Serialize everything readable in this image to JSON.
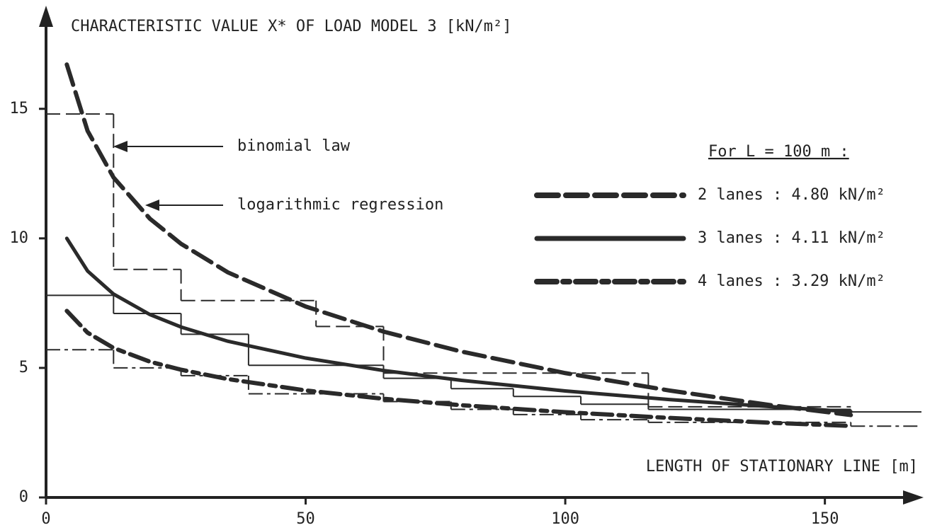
{
  "chart_data": {
    "type": "line",
    "title": "CHARACTERISTIC VALUE  X*  OF LOAD MODEL 3  [kN/m²]",
    "x_label": "LENGTH OF STATIONARY LINE  [m]",
    "xlim": [
      0,
      168.6
    ],
    "ylim": [
      0,
      18.9
    ],
    "xticks": [
      0,
      50,
      100,
      150
    ],
    "yticks": [
      0,
      5,
      10,
      15
    ],
    "legend_title": "For L = 100 m :",
    "annotations": [
      "binomial law",
      "logarithmic regression"
    ],
    "series": [
      {
        "name": "2 lanes : 4.80 kN/m²",
        "color": "#2a2a2a",
        "style": "dashed",
        "x": [
          4,
          8,
          13,
          20,
          26,
          35,
          50,
          65,
          80,
          100,
          120,
          140,
          155
        ],
        "values": [
          16.71,
          14.15,
          12.35,
          10.76,
          9.79,
          8.69,
          7.37,
          6.4,
          5.63,
          4.8,
          4.13,
          3.55,
          3.18
        ]
      },
      {
        "name": "3 lanes : 4.11 kN/m²",
        "color": "#2a2a2a",
        "style": "solid",
        "x": [
          4,
          8,
          13,
          20,
          26,
          35,
          50,
          65,
          80,
          100,
          120,
          140,
          155
        ],
        "values": [
          10.0,
          8.74,
          7.85,
          7.06,
          6.58,
          6.03,
          5.38,
          4.9,
          4.52,
          4.11,
          3.78,
          3.5,
          3.31
        ]
      },
      {
        "name": "4 lanes : 3.29 kN/m²",
        "color": "#2a2a2a",
        "style": "dashdot",
        "x": [
          4,
          8,
          13,
          20,
          26,
          35,
          50,
          65,
          80,
          100,
          120,
          140,
          155
        ],
        "values": [
          7.2,
          6.36,
          5.77,
          5.24,
          4.93,
          4.57,
          4.13,
          3.81,
          3.56,
          3.29,
          3.07,
          2.88,
          2.76
        ]
      }
    ],
    "steps": [
      {
        "style": "dashed",
        "color": "#2a2a2a",
        "bins": [
          0,
          13,
          26,
          52,
          65,
          116,
          155
        ],
        "values": [
          14.8,
          8.8,
          7.6,
          6.6,
          4.8,
          3.5
        ]
      },
      {
        "style": "solid",
        "color": "#2a2a2a",
        "bins": [
          0,
          13,
          26,
          39,
          65,
          78,
          90,
          103,
          116,
          155,
          168.6
        ],
        "values": [
          7.8,
          7.1,
          6.3,
          5.1,
          4.6,
          4.2,
          3.9,
          3.6,
          3.4,
          3.3
        ]
      },
      {
        "style": "dashdot",
        "color": "#2a2a2a",
        "bins": [
          0,
          13,
          26,
          39,
          65,
          78,
          90,
          103,
          116,
          155,
          168.6
        ],
        "values": [
          5.7,
          5.0,
          4.7,
          4.0,
          3.7,
          3.4,
          3.2,
          3.0,
          2.9,
          2.75
        ]
      }
    ]
  }
}
